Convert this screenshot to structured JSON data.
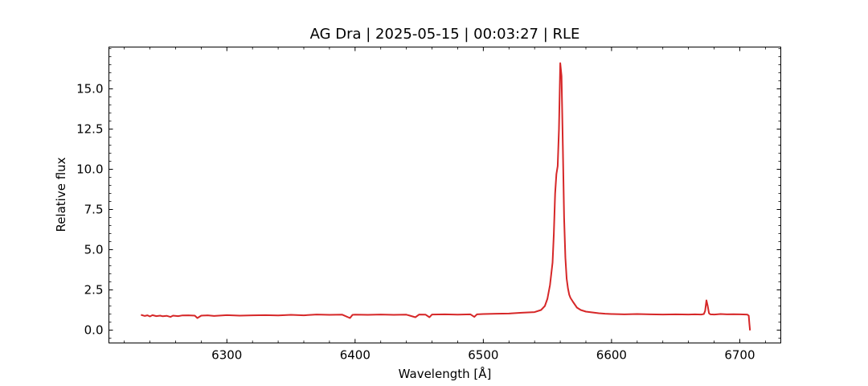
{
  "chart_data": {
    "type": "line",
    "title": "AG Dra | 2025-05-15 | 00:03:27 | RLE",
    "xlabel": "Wavelength [Å]",
    "ylabel": "Relative flux",
    "xlim": [
      6208,
      6732
    ],
    "ylim": [
      -0.8,
      17.6
    ],
    "xticks": [
      6300,
      6400,
      6500,
      6600,
      6700
    ],
    "xtick_labels": [
      "6300",
      "6400",
      "6500",
      "6600",
      "6700"
    ],
    "yticks": [
      0.0,
      2.5,
      5.0,
      7.5,
      10.0,
      12.5,
      15.0
    ],
    "ytick_labels": [
      "0.0",
      "2.5",
      "5.0",
      "7.5",
      "10.0",
      "12.5",
      "15.0"
    ],
    "x_minor_step": 20,
    "y_minor_step": 0.5,
    "grid": false,
    "line_color": "#d62728",
    "series": [
      {
        "x": [
          6233,
          6236,
          6238,
          6240,
          6242,
          6245,
          6248,
          6250,
          6253,
          6256,
          6258,
          6262,
          6265,
          6270,
          6275,
          6277,
          6280,
          6285,
          6290,
          6300,
          6310,
          6320,
          6330,
          6340,
          6350,
          6360,
          6370,
          6380,
          6390,
          6396,
          6398,
          6400,
          6410,
          6420,
          6430,
          6440,
          6447,
          6450,
          6455,
          6458,
          6460,
          6470,
          6480,
          6490,
          6493,
          6495,
          6500,
          6510,
          6520,
          6530,
          6540,
          6545,
          6548,
          6550,
          6552,
          6554,
          6555,
          6556,
          6557,
          6558,
          6559,
          6560,
          6561,
          6562,
          6563,
          6564,
          6565,
          6566,
          6567,
          6568,
          6570,
          6573,
          6576,
          6580,
          6585,
          6590,
          6595,
          6600,
          6610,
          6620,
          6630,
          6640,
          6650,
          6660,
          6665,
          6670,
          6672,
          6673,
          6674,
          6675,
          6676,
          6677,
          6680,
          6685,
          6690,
          6695,
          6700,
          6705,
          6706,
          6707,
          6707.5,
          6708
        ],
        "y": [
          0.95,
          0.88,
          0.92,
          0.85,
          0.93,
          0.87,
          0.9,
          0.86,
          0.89,
          0.82,
          0.9,
          0.87,
          0.91,
          0.92,
          0.9,
          0.75,
          0.9,
          0.92,
          0.88,
          0.93,
          0.9,
          0.92,
          0.93,
          0.91,
          0.95,
          0.92,
          0.97,
          0.95,
          0.96,
          0.75,
          0.95,
          0.96,
          0.95,
          0.97,
          0.95,
          0.96,
          0.8,
          0.97,
          0.96,
          0.8,
          0.97,
          0.98,
          0.96,
          0.98,
          0.82,
          0.98,
          1.0,
          1.02,
          1.03,
          1.08,
          1.12,
          1.25,
          1.5,
          1.95,
          2.8,
          4.2,
          6.0,
          8.5,
          9.7,
          10.2,
          12.5,
          16.6,
          15.8,
          11.5,
          7.0,
          4.5,
          3.2,
          2.6,
          2.2,
          2.0,
          1.75,
          1.4,
          1.25,
          1.15,
          1.1,
          1.05,
          1.02,
          1.0,
          0.98,
          1.0,
          0.98,
          0.97,
          0.98,
          0.97,
          0.98,
          0.97,
          1.0,
          1.2,
          1.85,
          1.5,
          1.05,
          0.98,
          0.97,
          1.0,
          0.98,
          0.99,
          0.98,
          0.97,
          0.96,
          0.9,
          0.4,
          -0.02
        ]
      }
    ]
  }
}
